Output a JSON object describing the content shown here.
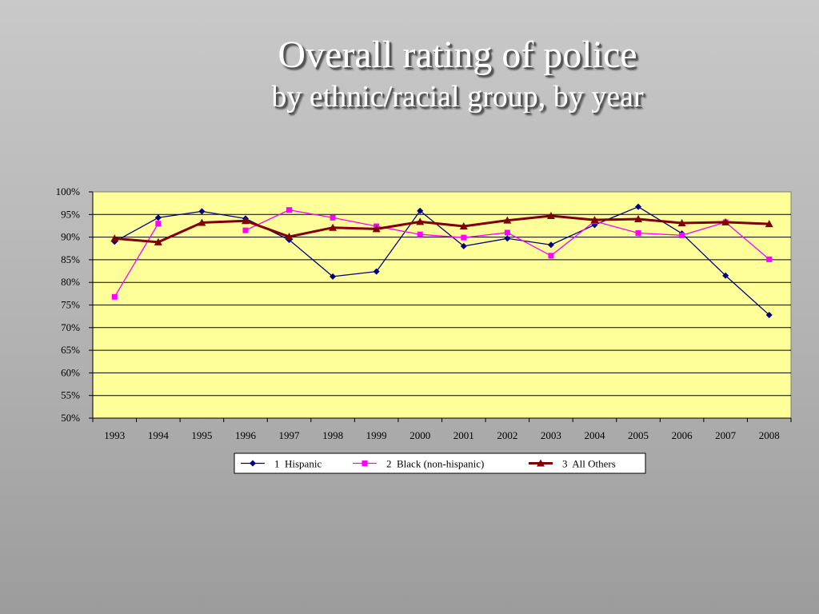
{
  "title": "Overall rating of police",
  "subtitle": "by ethnic/racial group, by year",
  "colors": {
    "plot_background": "#ffff99",
    "gridline": "#000000",
    "hispanic": "#000080",
    "black": "#ff00ff",
    "others": "#800000"
  },
  "chart_data": {
    "type": "line",
    "title": "Overall rating of police",
    "subtitle": "by ethnic/racial group, by year",
    "xlabel": "",
    "ylabel": "",
    "categories": [
      "1993",
      "1994",
      "1995",
      "1996",
      "1997",
      "1998",
      "1999",
      "2000",
      "2001",
      "2002",
      "2003",
      "2004",
      "2005",
      "2006",
      "2007",
      "2008"
    ],
    "y_tick_labels": [
      "100%",
      "95%",
      "90%",
      "85%",
      "80%",
      "75%",
      "70%",
      "65%",
      "60%",
      "55%",
      "50%"
    ],
    "ylim": [
      50,
      100
    ],
    "y_step": 5,
    "grid": "horizontal",
    "legend_position": "bottom",
    "series": [
      {
        "name": "1  Hispanic",
        "marker": "diamond",
        "color": "#000080",
        "values": [
          89.0,
          94.3,
          95.7,
          94.1,
          89.4,
          81.3,
          82.4,
          95.8,
          88.0,
          89.7,
          88.3,
          92.7,
          96.7,
          90.8,
          81.5,
          72.8
        ]
      },
      {
        "name": "2  Black (non-hispanic)",
        "marker": "square",
        "color": "#ff00ff",
        "values": [
          76.8,
          93.0,
          null,
          91.5,
          96.0,
          94.3,
          92.4,
          90.6,
          89.9,
          91.0,
          85.9,
          93.5,
          90.9,
          90.4,
          93.3,
          85.1
        ]
      },
      {
        "name": "3  All Others",
        "marker": "triangle",
        "color": "#800000",
        "values": [
          89.7,
          88.9,
          93.2,
          93.6,
          90.1,
          92.1,
          91.8,
          93.4,
          92.4,
          93.7,
          94.7,
          93.8,
          94.0,
          93.1,
          93.3,
          92.9
        ]
      }
    ]
  }
}
